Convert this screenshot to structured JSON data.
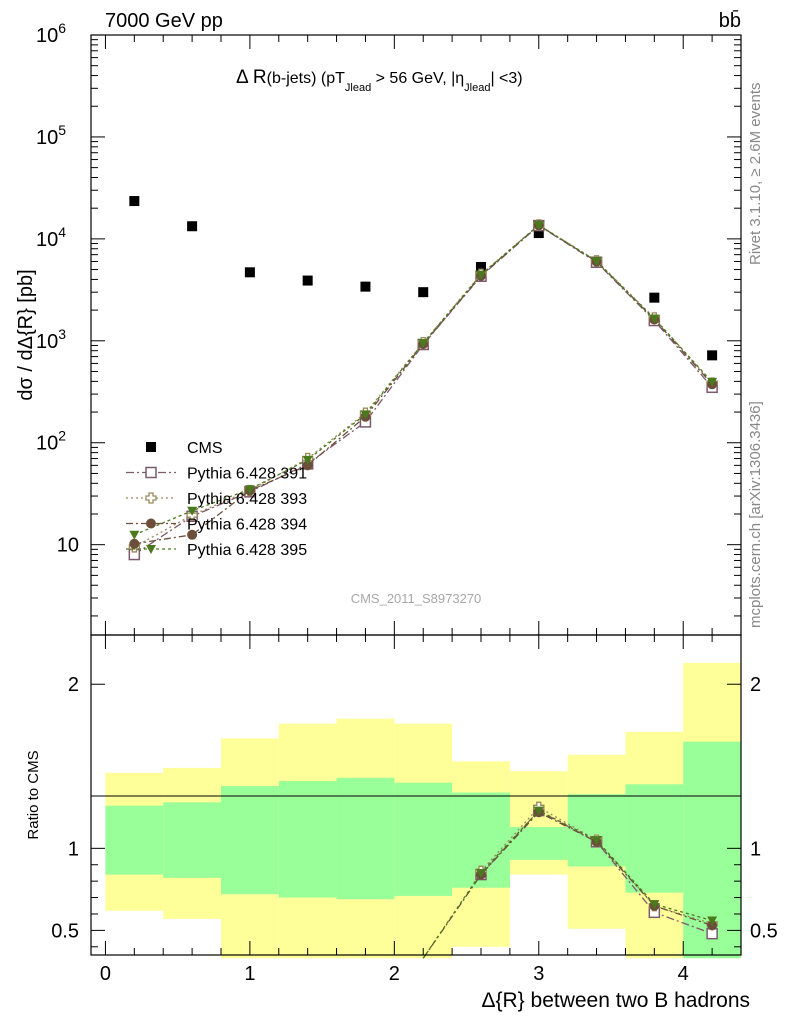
{
  "header": {
    "beam": "7000 GeV pp",
    "process": "bb̄"
  },
  "side_labels": {
    "rivet": "Rivet 3.1.10, ≥ 2.6M events",
    "mcplots": "mcplots.cern.ch [arXiv:1306.3436]"
  },
  "chart_data": [
    {
      "type": "scatter",
      "title": "Δ R(b-jets) (pT_Jlead > 56 GeV, |η_Jlead| <3)",
      "title_parts": {
        "a": "Δ R",
        "b": "(b-jets) (pT",
        "b_sub": "Jlead",
        "c": " >  56 GeV, |η",
        "c_sub": "Jlead",
        "d": "| <3)"
      },
      "watermark": "CMS_2011_S8973270",
      "ylabel": "dσ / dΔ{R} [pb]",
      "xlabel": "",
      "yscale": "log",
      "ylim": [
        1.3,
        1000000
      ],
      "xlim": [
        -0.1,
        4.4
      ],
      "y_ticks": [
        {
          "value": 10,
          "base": "10",
          "exp": ""
        },
        {
          "value": 100,
          "base": "10",
          "exp": "2"
        },
        {
          "value": 1000,
          "base": "10",
          "exp": "3"
        },
        {
          "value": 10000,
          "base": "10",
          "exp": "4"
        },
        {
          "value": 100000,
          "base": "10",
          "exp": "5"
        },
        {
          "value": 1000000,
          "base": "10",
          "exp": "6"
        }
      ],
      "x": [
        0.2,
        0.6,
        1.0,
        1.4,
        1.8,
        2.2,
        2.6,
        3.0,
        3.4,
        3.8,
        4.2
      ],
      "legend_position": "lower-left",
      "series": [
        {
          "name": "CMS",
          "marker": "filled-square",
          "color": "#000000",
          "values": [
            23500,
            13300,
            4700,
            3900,
            3400,
            3000,
            5300,
            11400,
            5900,
            2650,
            720
          ]
        },
        {
          "name": "Pythia 6.428 391",
          "marker": "open-square",
          "color": "#7d5a6b",
          "dash": "8,3,2,3",
          "values": [
            8,
            19,
            33,
            62,
            160,
            920,
            4300,
            13500,
            5900,
            1580,
            350
          ]
        },
        {
          "name": "Pythia 6.428 393",
          "marker": "open-cross",
          "color": "#9a8a5a",
          "dash": "2,3",
          "values": [
            9.5,
            19.5,
            34,
            70,
            195,
            960,
            4500,
            13700,
            6100,
            1680,
            385
          ]
        },
        {
          "name": "Pythia 6.428 394",
          "marker": "filled-circle",
          "color": "#6b4f3a",
          "dash": "7,3,2,3",
          "values": [
            10.2,
            12.5,
            34,
            60,
            180,
            930,
            4350,
            13600,
            6000,
            1620,
            375
          ]
        },
        {
          "name": "Pythia 6.428 395",
          "marker": "filled-triangle-down",
          "color": "#4b7a1e",
          "dash": "3,3",
          "values": [
            12.5,
            21.5,
            35,
            68,
            190,
            950,
            4450,
            13650,
            6050,
            1650,
            395
          ]
        }
      ]
    },
    {
      "type": "scatter",
      "ylabel": "Ratio to CMS",
      "xlabel": "Δ{R} between two B hadrons",
      "xlim": [
        -0.1,
        4.4
      ],
      "ylim": [
        0.35,
        2.3
      ],
      "y_ticks": [
        0.5,
        1,
        2
      ],
      "y_tick_labels": [
        "0.5",
        "1",
        "2"
      ],
      "x_ticks": [
        0,
        1,
        2,
        3,
        4
      ],
      "x_tick_labels": [
        "0",
        "1",
        "2",
        "3",
        "4"
      ],
      "x": [
        0.2,
        0.6,
        1.0,
        1.4,
        1.8,
        2.2,
        2.6,
        3.0,
        3.4,
        3.8,
        4.2
      ],
      "bin_edges": [
        0.0,
        0.4,
        0.8,
        1.2,
        1.6,
        2.0,
        2.4,
        2.8,
        3.2,
        3.6,
        4.0,
        4.4
      ],
      "bands": {
        "yellow": [
          [
            0.62,
            1.46
          ],
          [
            0.57,
            1.49
          ],
          [
            0.33,
            1.67
          ],
          [
            0.33,
            1.76
          ],
          [
            0.33,
            1.79
          ],
          [
            0.33,
            1.76
          ],
          [
            0.4,
            1.53
          ],
          [
            0.84,
            1.47
          ],
          [
            0.51,
            1.57
          ],
          [
            0.33,
            1.71
          ],
          [
            0.33,
            2.13
          ]
        ],
        "green": [
          [
            0.84,
            1.26
          ],
          [
            0.82,
            1.28
          ],
          [
            0.72,
            1.38
          ],
          [
            0.7,
            1.41
          ],
          [
            0.69,
            1.43
          ],
          [
            0.71,
            1.4
          ],
          [
            0.76,
            1.34
          ],
          [
            0.93,
            1.13
          ],
          [
            0.89,
            1.33
          ],
          [
            0.73,
            1.39
          ],
          [
            0.33,
            1.65
          ]
        ]
      },
      "series": [
        {
          "name": "Pythia 6.428 391",
          "values": [
            null,
            null,
            null,
            null,
            null,
            null,
            0.84,
            1.23,
            1.04,
            0.61,
            0.48
          ]
        },
        {
          "name": "Pythia 6.428 393",
          "values": [
            null,
            null,
            null,
            null,
            null,
            null,
            0.86,
            1.25,
            1.05,
            0.65,
            0.54
          ]
        },
        {
          "name": "Pythia 6.428 394",
          "values": [
            null,
            null,
            null,
            null,
            null,
            0.33,
            0.84,
            1.22,
            1.04,
            0.65,
            0.53
          ]
        },
        {
          "name": "Pythia 6.428 395",
          "values": [
            null,
            null,
            null,
            null,
            null,
            0.33,
            0.85,
            1.23,
            1.05,
            0.66,
            0.56
          ]
        }
      ]
    }
  ],
  "colors": {
    "yellow_band": "#ffff99",
    "green_band": "#99ff99"
  }
}
